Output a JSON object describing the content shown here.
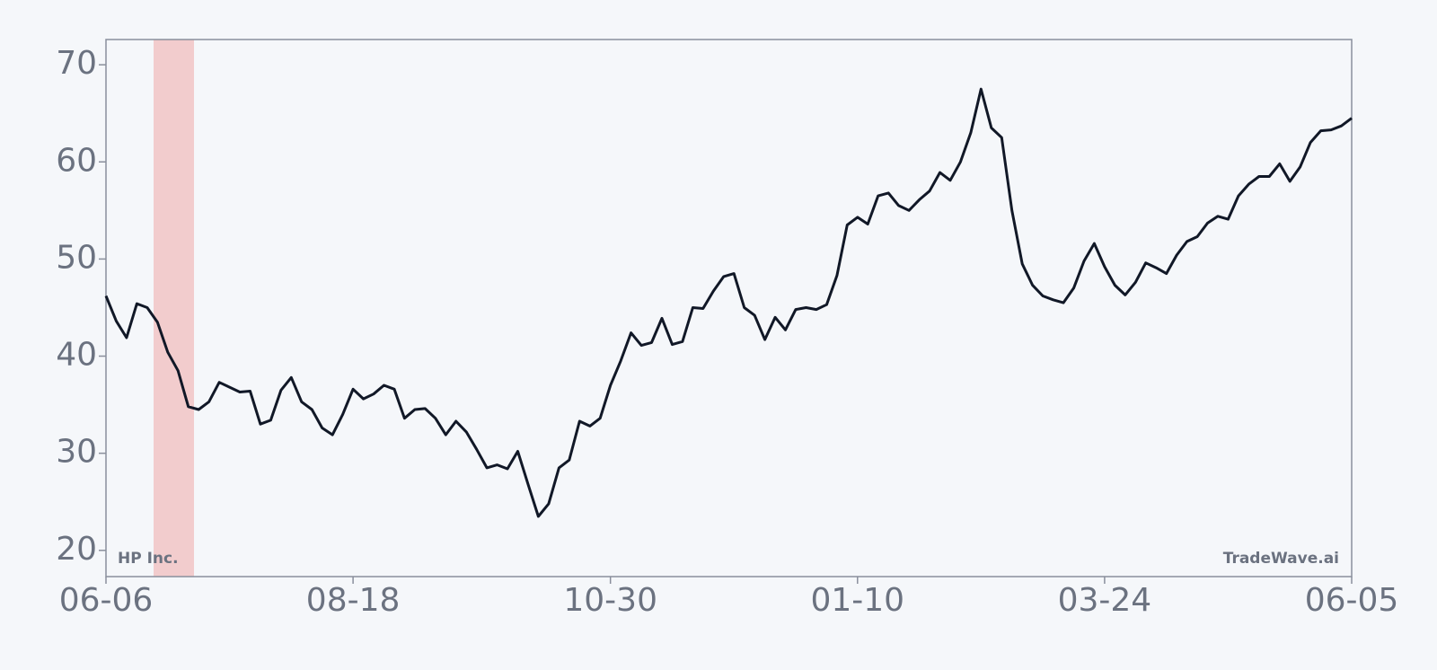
{
  "chart_data": {
    "type": "line",
    "annotations": [
      "HP Inc.",
      "TradeWave.ai"
    ],
    "categories": [
      "06-06",
      null,
      null,
      null,
      null,
      null,
      null,
      null,
      null,
      null,
      null,
      null,
      null,
      null,
      null,
      null,
      null,
      null,
      null,
      null,
      null,
      null,
      null,
      null,
      "08-18",
      null,
      null,
      null,
      null,
      null,
      null,
      null,
      null,
      null,
      null,
      null,
      null,
      null,
      null,
      null,
      null,
      null,
      null,
      null,
      null,
      null,
      null,
      null,
      null,
      "10-30",
      null,
      null,
      null,
      null,
      null,
      null,
      null,
      null,
      null,
      null,
      null,
      null,
      null,
      null,
      null,
      null,
      null,
      null,
      null,
      null,
      null,
      null,
      null,
      "01-10",
      null,
      null,
      null,
      null,
      null,
      null,
      null,
      null,
      null,
      null,
      null,
      null,
      null,
      null,
      null,
      null,
      null,
      null,
      null,
      null,
      null,
      null,
      null,
      "03-24",
      null,
      null,
      null,
      null,
      null,
      null,
      null,
      null,
      null,
      null,
      null,
      null,
      null,
      null,
      null,
      null,
      null,
      null,
      null,
      null,
      null,
      null,
      null,
      "06-05"
    ],
    "series": [
      {
        "color": "#111827",
        "values": [
          46.2,
          43.6,
          41.9,
          45.4,
          45.0,
          43.5,
          40.4,
          38.5,
          34.8,
          34.5,
          35.3,
          37.3,
          36.8,
          36.3,
          36.4,
          33.0,
          33.4,
          36.5,
          37.8,
          35.3,
          34.5,
          32.6,
          31.9,
          34.0,
          36.6,
          35.6,
          36.1,
          37.0,
          36.6,
          33.6,
          34.5,
          34.6,
          33.6,
          31.9,
          33.3,
          32.2,
          30.4,
          28.5,
          28.8,
          28.4,
          30.2,
          26.8,
          23.5,
          24.8,
          28.5,
          29.3,
          33.3,
          32.8,
          33.6,
          37.0,
          39.5,
          42.4,
          41.1,
          41.4,
          43.9,
          41.2,
          41.5,
          45.0,
          44.9,
          46.7,
          48.2,
          48.5,
          45.0,
          44.2,
          41.7,
          44.0,
          42.7,
          44.8,
          45.0,
          44.8,
          45.3,
          48.3,
          53.5,
          54.3,
          53.6,
          56.5,
          56.8,
          55.5,
          55.0,
          56.1,
          57.0,
          58.9,
          58.1,
          60.0,
          63.0,
          67.5,
          63.5,
          62.5,
          55.0,
          49.5,
          47.3,
          46.2,
          45.8,
          45.5,
          47.0,
          49.8,
          51.6,
          49.2,
          47.3,
          46.3,
          47.6,
          49.6,
          49.1,
          48.5,
          50.4,
          51.8,
          52.3,
          53.7,
          54.4,
          54.1,
          56.5,
          57.7,
          58.5,
          58.5,
          59.8,
          58.0,
          59.5,
          62.0,
          63.2,
          63.3,
          63.7,
          64.5
        ]
      }
    ],
    "ylim": [
      17.3,
      72.6
    ],
    "yticks": [
      20,
      30,
      40,
      50,
      60,
      70
    ]
  }
}
